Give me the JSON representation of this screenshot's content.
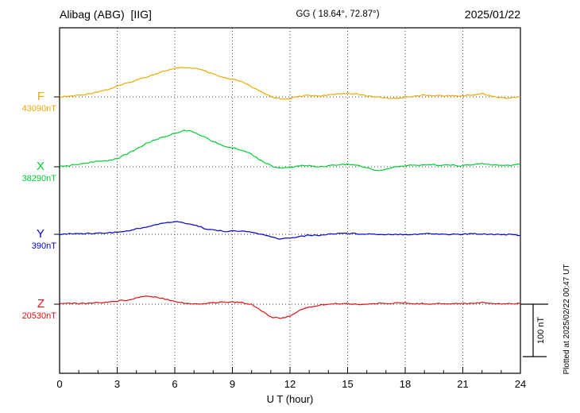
{
  "header": {
    "station": "Alibag (ABG)  [IIG]",
    "coords": "GG ( 18.64°, 72.87°)",
    "date": "2025/01/22"
  },
  "footer_note": "Plotted at 2025/02/22 00:47 UT",
  "chart_data": {
    "type": "line",
    "xlabel": "U T (hour)",
    "scale_label": "100 nT",
    "scale_nT": 100,
    "xlim": [
      0,
      24
    ],
    "x_ticks": [
      0,
      3,
      6,
      9,
      12,
      15,
      18,
      21,
      24
    ],
    "grid": "dotted vertical gridlines every 3 hours; dotted horizontal baseline per component",
    "x": [
      0,
      0.5,
      1,
      1.5,
      2,
      2.5,
      3,
      3.5,
      4,
      4.5,
      5,
      5.5,
      6,
      6.5,
      7,
      7.5,
      8,
      8.5,
      9,
      9.5,
      10,
      10.5,
      11,
      11.5,
      12,
      12.5,
      13,
      13.5,
      14,
      14.5,
      15,
      15.5,
      16,
      16.5,
      17,
      17.5,
      18,
      18.5,
      19,
      19.5,
      20,
      20.5,
      21,
      21.5,
      22,
      22.5,
      23,
      23.5,
      24
    ],
    "value_unit": "nT offset from component baseline",
    "series": [
      {
        "name": "F",
        "baseline_label": "43090nT",
        "color": "#f0a800",
        "values": [
          0,
          1,
          3,
          6,
          10,
          14,
          20,
          26,
          32,
          38,
          44,
          50,
          54,
          56,
          55,
          50,
          43,
          37,
          33,
          29,
          19,
          9,
          1,
          -4,
          -3,
          1,
          3,
          2,
          3,
          6,
          7,
          5,
          2,
          0,
          -2,
          -3,
          0,
          2,
          3,
          3,
          2,
          2,
          2,
          4,
          6,
          2,
          -2,
          -2,
          0
        ]
      },
      {
        "name": "X",
        "baseline_label": "38290nT",
        "color": "#00cc33",
        "values": [
          0,
          2,
          5,
          8,
          10,
          12,
          16,
          24,
          34,
          44,
          52,
          58,
          64,
          70,
          66,
          58,
          48,
          40,
          36,
          32,
          24,
          12,
          2,
          -3,
          -1,
          2,
          2,
          0,
          2,
          4,
          5,
          3,
          -2,
          -7,
          -5,
          0,
          2,
          3,
          4,
          4,
          3,
          3,
          2,
          4,
          6,
          4,
          2,
          3,
          5
        ]
      },
      {
        "name": "Y",
        "baseline_label": "390nT",
        "color": "#0000cc",
        "values": [
          0,
          1,
          1,
          2,
          2,
          3,
          4,
          6,
          10,
          14,
          18,
          22,
          24,
          22,
          18,
          12,
          8,
          6,
          6,
          6,
          4,
          0,
          -5,
          -9,
          -7,
          -4,
          -2,
          -2,
          0,
          2,
          2,
          1,
          1,
          0,
          0,
          0,
          0,
          0,
          1,
          1,
          0,
          0,
          0,
          1,
          1,
          0,
          0,
          -1,
          -2
        ]
      },
      {
        "name": "Z",
        "baseline_label": "20530nT",
        "color": "#e01010",
        "values": [
          2,
          2,
          1,
          2,
          3,
          4,
          6,
          8,
          12,
          16,
          14,
          10,
          6,
          2,
          0,
          1,
          3,
          4,
          4,
          3,
          0,
          -12,
          -24,
          -28,
          -22,
          -12,
          -6,
          -2,
          0,
          1,
          1,
          0,
          0,
          1,
          2,
          2,
          2,
          1,
          1,
          1,
          1,
          1,
          1,
          2,
          3,
          2,
          1,
          1,
          1
        ]
      }
    ]
  }
}
